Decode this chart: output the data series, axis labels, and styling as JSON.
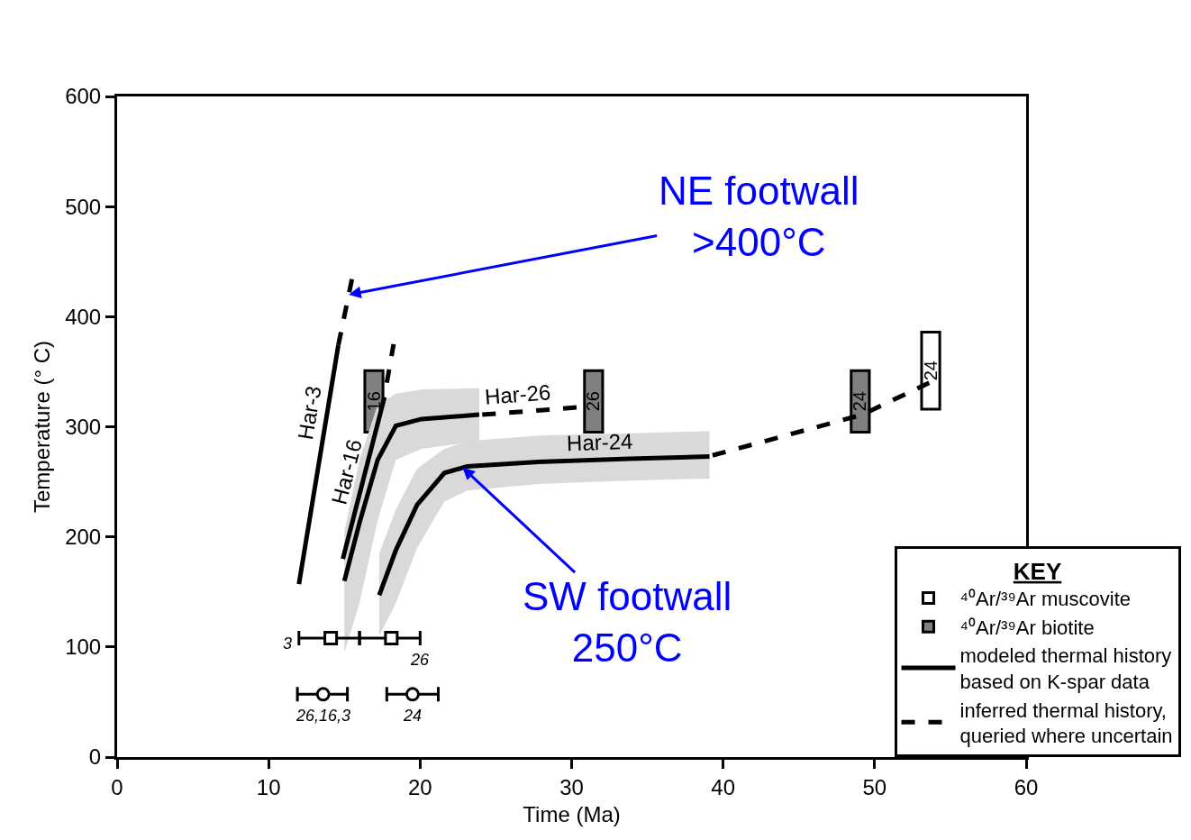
{
  "chart_data": {
    "type": "line",
    "xlabel": "Time (Ma)",
    "ylabel": "Temperature (° C)",
    "xlim": [
      0,
      60
    ],
    "ylim": [
      0,
      600
    ],
    "xticks": [
      0,
      10,
      20,
      30,
      40,
      50,
      60
    ],
    "yticks": [
      0,
      100,
      200,
      300,
      400,
      500,
      600
    ],
    "legend": "bottom right",
    "legend_title": "KEY",
    "series": [
      {
        "name": "⁴⁰Ar/³⁹Ar muscovite",
        "type": "bar",
        "color": "#ffffff",
        "x": [
          53.7
        ],
        "base": [
          316
        ],
        "values": [
          70
        ]
      },
      {
        "name": "⁴⁰Ar/³⁹Ar biotite",
        "type": "bar",
        "color": "#808080",
        "x": [
          16.95,
          31.45,
          49.05
        ],
        "base": [
          295,
          295,
          295
        ],
        "values": [
          56,
          56,
          56
        ]
      },
      {
        "name": "modeled thermal history\nbased on K-spar data",
        "color": "#000000",
        "line_style": "solid",
        "x": [
          12.0,
          14.6
        ],
        "values": [
          157,
          374
        ]
      },
      {
        "color": "#000000",
        "line_style": "solid",
        "x": [
          14.9,
          17.65
        ],
        "values": [
          180,
          327
        ]
      },
      {
        "color": "#000000",
        "line_style": "solid",
        "x": [
          15.0,
          16.0,
          17.2,
          18.4,
          20.1,
          23.9
        ],
        "values": [
          160,
          213,
          270,
          301,
          307,
          311
        ],
        "lower": [
          95,
          140,
          215,
          270,
          280,
          287
        ],
        "upper": [
          205,
          270,
          320,
          330,
          334,
          335
        ]
      },
      {
        "color": "#000000",
        "line_style": "solid",
        "x": [
          17.3,
          18.4,
          19.8,
          21.6,
          23.1,
          27.8,
          33.8,
          39.1
        ],
        "values": [
          147,
          188,
          229,
          258,
          264,
          268,
          271,
          273
        ],
        "lower": [
          110,
          140,
          190,
          232,
          242,
          248,
          251,
          253
        ],
        "upper": [
          185,
          225,
          262,
          280,
          287,
          292,
          294,
          296
        ]
      },
      {
        "name": "inferred thermal history,\nqueried where uncertain",
        "color": "#000000",
        "line_style": "dashed",
        "x": [
          14.6,
          15.5
        ],
        "values": [
          374,
          434
        ]
      },
      {
        "color": "#000000",
        "line_style": "dashed",
        "x": [
          17.8,
          18.25
        ],
        "values": [
          340,
          375
        ]
      },
      {
        "color": "#000000",
        "line_style": "dashed",
        "x": [
          24.1,
          30.8
        ],
        "values": [
          311,
          318
        ]
      },
      {
        "color": "#000000",
        "line_style": "dashed",
        "x": [
          39.3,
          49.2,
          53.6
        ],
        "values": [
          274,
          311,
          340
        ]
      },
      {
        "type": "scatter",
        "marker": "square",
        "color": "#000000",
        "x": [
          14.1,
          18.1
        ],
        "values": [
          108,
          108
        ],
        "xerrors": [
          [
            12.0,
            16.0
          ],
          [
            16.0,
            20.0
          ]
        ]
      },
      {
        "type": "scatter",
        "marker": "circle",
        "color": "#000000",
        "x": [
          13.6,
          19.5
        ],
        "values": [
          57,
          57
        ],
        "xerrors": [
          [
            11.9,
            15.2
          ],
          [
            17.8,
            21.2
          ]
        ]
      }
    ],
    "annotations": [
      {
        "text": "24",
        "x": 53.7,
        "y": 386
      },
      {
        "text": "16",
        "x": 16.95,
        "y": 351
      },
      {
        "text": "26",
        "x": 31.45,
        "y": 351
      },
      {
        "text": "24",
        "x": 49.05,
        "y": 351
      },
      {
        "text": "Har-3",
        "x": 13.83,
        "y": 310
      },
      {
        "text": "Har-16",
        "x": 16.3,
        "y": 255
      },
      {
        "text": "Har-26",
        "x": 26.5,
        "y": 313.5
      },
      {
        "text": "Har-24",
        "x": 31.9,
        "y": 270
      },
      {
        "text": "3",
        "x": 12.0,
        "y": 108
      },
      {
        "text": "26",
        "x": 20.0,
        "y": 108
      },
      {
        "text": "26,16,3",
        "x": 13.6,
        "y": 57
      },
      {
        "text": "24",
        "x": 19.5,
        "y": 57
      },
      {
        "text": "NE footwall\n>400°C",
        "x": 15.29,
        "y": 420
      },
      {
        "text": "SW footwall\n250°C",
        "x": 22.8,
        "y": 263
      }
    ]
  }
}
